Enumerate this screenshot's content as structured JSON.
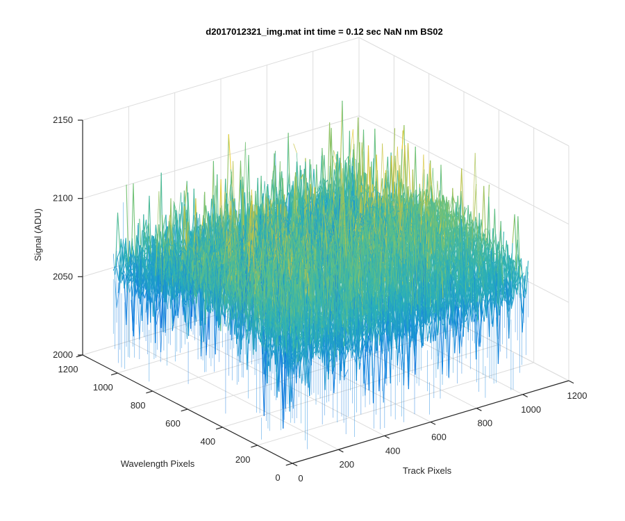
{
  "chart_data": {
    "type": "surface",
    "title": "d2017012321_img.mat int time = 0.12 sec  NaN nm BS02",
    "xlabel": "Track Pixels",
    "ylabel": "Wavelength Pixels",
    "zlabel": "Signal (ADU)",
    "xlim": [
      0,
      1200
    ],
    "ylim": [
      0,
      1200
    ],
    "zlim": [
      2000,
      2150
    ],
    "x_ticks": [
      "0",
      "200",
      "400",
      "600",
      "800",
      "1000",
      "1200"
    ],
    "y_ticks": [
      "0",
      "200",
      "400",
      "600",
      "800",
      "1000",
      "1200"
    ],
    "z_ticks": [
      "2000",
      "2050",
      "2100",
      "2150"
    ],
    "grid": true,
    "colormap": "parula",
    "data_extent": {
      "x": [
        0,
        1024
      ],
      "y": [
        0,
        1024
      ]
    },
    "signal_summary": {
      "baseline_adu": 2045,
      "typical_peak_adu": 2110,
      "max_peak_adu": 2140,
      "min_adu": 2005
    },
    "colors": {
      "low": "#0b72e0",
      "mid": "#25b3b0",
      "high": "#e6c43a"
    }
  }
}
